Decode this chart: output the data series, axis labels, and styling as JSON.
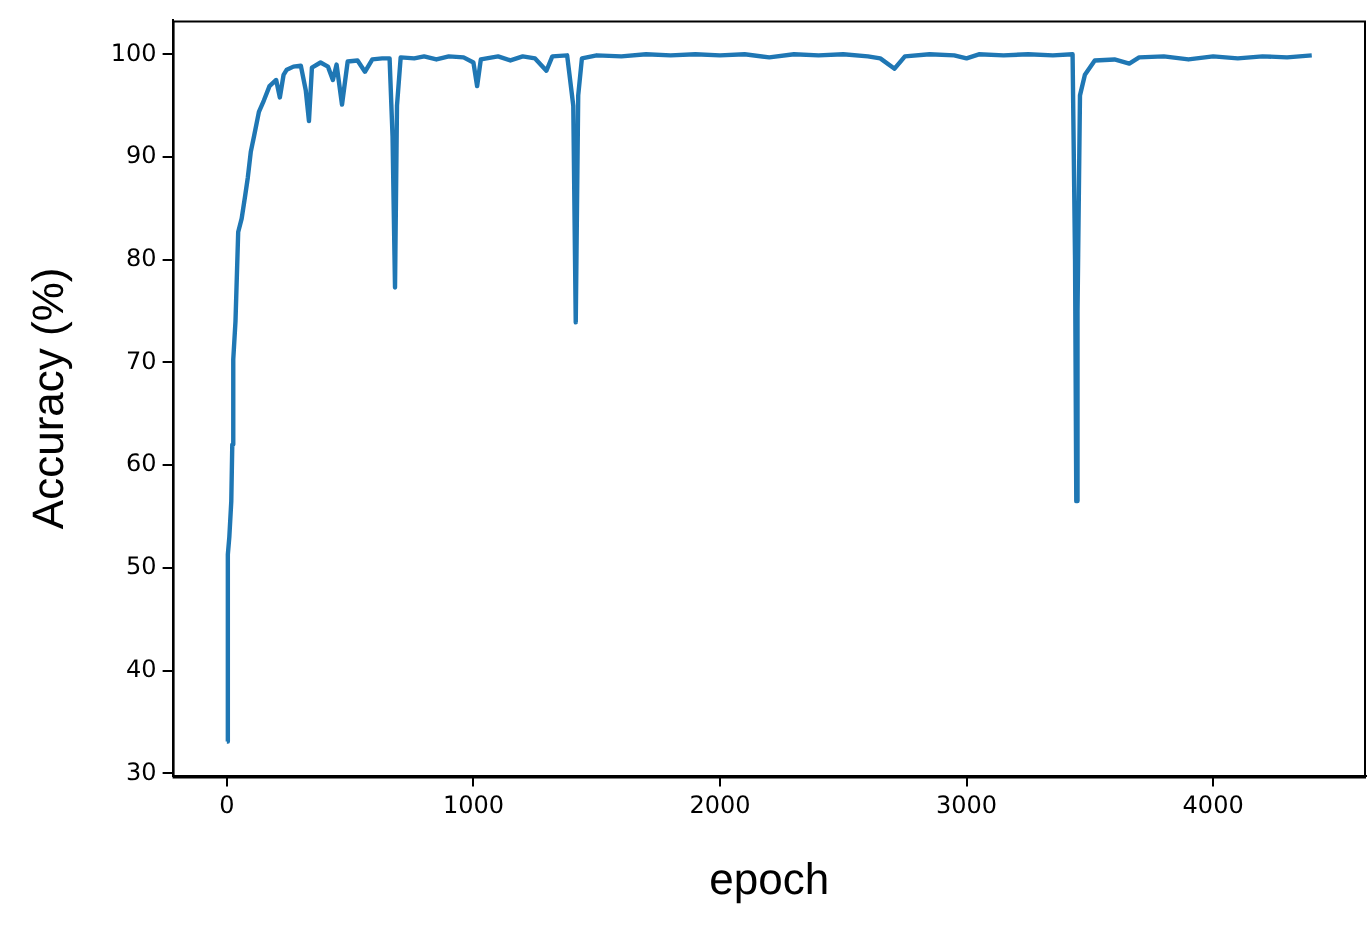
{
  "chart_data": {
    "type": "line",
    "xlabel": "epoch",
    "ylabel": "Accuracy (%)",
    "xlim": [
      -220,
      4620
    ],
    "xticks": [
      0,
      1000,
      2000,
      3000,
      4000
    ],
    "ylim": [
      29.7,
      103.3
    ],
    "yticks": [
      30,
      40,
      50,
      60,
      70,
      80,
      90,
      100
    ],
    "grid": false,
    "legend": false,
    "marker": "none",
    "line_style": "solid",
    "series": [
      {
        "color": "#1f77b4",
        "x": [
          0,
          4,
          10,
          18,
          22,
          26,
          35,
          46,
          60,
          74,
          85,
          97,
          110,
          130,
          150,
          173,
          200,
          215,
          230,
          243,
          270,
          300,
          320,
          333,
          345,
          380,
          410,
          430,
          445,
          467,
          490,
          530,
          560,
          590,
          630,
          660,
          672,
          682,
          690,
          705,
          760,
          800,
          850,
          900,
          960,
          1000,
          1015,
          1030,
          1100,
          1150,
          1200,
          1250,
          1296,
          1320,
          1380,
          1405,
          1415,
          1425,
          1440,
          1500,
          1600,
          1700,
          1800,
          1900,
          2000,
          2100,
          2200,
          2300,
          2400,
          2500,
          2600,
          2650,
          2708,
          2750,
          2850,
          2950,
          3000,
          3050,
          3150,
          3250,
          3350,
          3430,
          3440,
          3445,
          3450,
          3460,
          3480,
          3520,
          3600,
          3660,
          3700,
          3800,
          3900,
          4000,
          4100,
          4200,
          4300,
          4400
        ],
        "values": [
          33.1,
          51.3,
          53,
          56.5,
          62,
          70.3,
          74,
          82.7,
          84,
          86.2,
          88,
          90.5,
          92,
          94.4,
          95.5,
          96.9,
          97.5,
          95.8,
          98,
          98.5,
          98.8,
          98.9,
          96.5,
          93.5,
          98.7,
          99.2,
          98.8,
          97.5,
          99,
          95.1,
          99.3,
          99.4,
          98.3,
          99.5,
          99.6,
          99.6,
          92,
          77.3,
          95,
          99.7,
          99.6,
          99.8,
          99.5,
          99.8,
          99.7,
          99.2,
          96.9,
          99.5,
          99.8,
          99.4,
          99.8,
          99.6,
          98.4,
          99.8,
          99.9,
          95,
          73.9,
          96,
          99.6,
          99.9,
          99.8,
          100,
          99.9,
          100,
          99.9,
          100,
          99.7,
          100,
          99.9,
          100,
          99.8,
          99.6,
          98.6,
          99.8,
          100,
          99.9,
          99.6,
          100,
          99.9,
          100,
          99.9,
          100,
          80,
          56.5,
          75,
          96,
          98,
          99.4,
          99.5,
          99.1,
          99.7,
          99.8,
          99.5,
          99.8,
          99.6,
          99.8,
          99.7,
          99.9
        ]
      }
    ]
  }
}
